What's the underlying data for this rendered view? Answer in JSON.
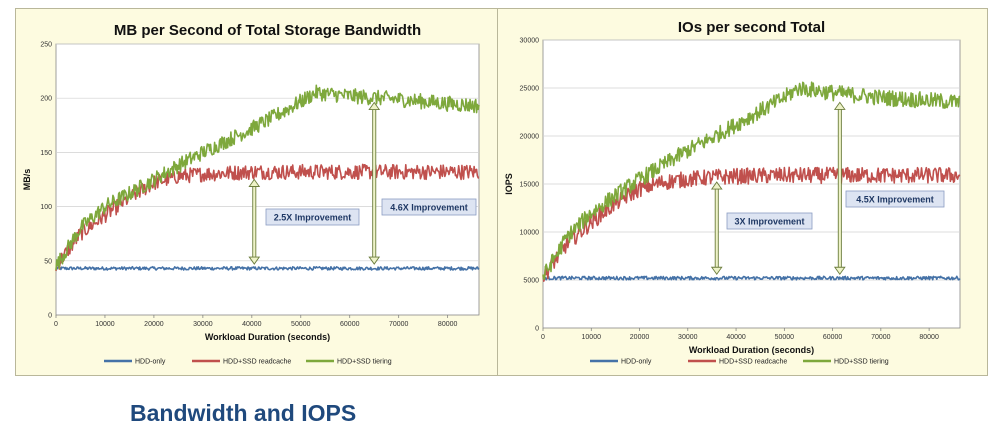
{
  "caption": "Bandwidth and IOPS",
  "chart_data": [
    {
      "type": "line",
      "title": "MB per Second of Total Storage Bandwidth",
      "xlabel": "Workload Duration (seconds)",
      "ylabel": "MB/s",
      "xlim": [
        0,
        86400
      ],
      "ylim": [
        0,
        250
      ],
      "x_ticks": [
        "0",
        "10000",
        "20000",
        "30000",
        "40000",
        "50000",
        "60000",
        "70000",
        "80000"
      ],
      "y_ticks": [
        "0",
        "50",
        "100",
        "150",
        "200",
        "250"
      ],
      "grid": "horizontal",
      "legend_position": "bottom",
      "series": [
        {
          "name": "HDD-only",
          "color": "#4572a7",
          "x": [
            0,
            10000,
            20000,
            30000,
            40000,
            50000,
            55000,
            60000,
            70000,
            80000,
            86400
          ],
          "y": [
            43,
            43,
            43,
            43,
            43,
            43,
            43,
            43,
            43,
            43,
            43
          ]
        },
        {
          "name": "HDD+SSD readcache",
          "color": "#c0504d",
          "x": [
            0,
            5000,
            10000,
            15000,
            20000,
            25000,
            30000,
            35000,
            40000,
            50000,
            60000,
            70000,
            80000,
            86400
          ],
          "y": [
            45,
            75,
            92,
            108,
            122,
            128,
            130,
            131,
            132,
            132,
            132,
            132,
            132,
            132
          ]
        },
        {
          "name": "HDD+SSD tiering",
          "color": "#7ea83c",
          "x": [
            0,
            5000,
            10000,
            15000,
            20000,
            25000,
            30000,
            35000,
            40000,
            45000,
            50000,
            53000,
            60000,
            70000,
            80000,
            86400
          ],
          "y": [
            45,
            80,
            100,
            112,
            125,
            138,
            150,
            161,
            172,
            184,
            197,
            205,
            202,
            199,
            195,
            193
          ]
        }
      ],
      "annotations": [
        {
          "text": "2.5X Improvement",
          "x": 40500,
          "y_from": 125,
          "y_to": 47
        },
        {
          "text": "4.6X Improvement",
          "x": 65000,
          "y_from": 196,
          "y_to": 47
        }
      ]
    },
    {
      "type": "line",
      "title": "IOs per second Total",
      "xlabel": "Workload Duration (seconds)",
      "ylabel": "IOPS",
      "xlim": [
        0,
        86400
      ],
      "ylim": [
        0,
        30000
      ],
      "x_ticks": [
        "0",
        "10000",
        "20000",
        "30000",
        "40000",
        "50000",
        "60000",
        "70000",
        "80000"
      ],
      "y_ticks": [
        "0",
        "5000",
        "10000",
        "15000",
        "20000",
        "25000",
        "30000"
      ],
      "grid": "horizontal",
      "legend_position": "bottom",
      "series": [
        {
          "name": "HDD-only",
          "color": "#4572a7",
          "x": [
            0,
            10000,
            20000,
            30000,
            40000,
            50000,
            55000,
            60000,
            70000,
            80000,
            86400
          ],
          "y": [
            5200,
            5200,
            5200,
            5200,
            5200,
            5200,
            5200,
            5200,
            5200,
            5200,
            5200
          ]
        },
        {
          "name": "HDD+SSD readcache",
          "color": "#c0504d",
          "x": [
            0,
            5000,
            10000,
            15000,
            20000,
            25000,
            30000,
            35000,
            40000,
            50000,
            60000,
            70000,
            80000,
            86400
          ],
          "y": [
            5300,
            8800,
            11000,
            13000,
            14500,
            15200,
            15500,
            15700,
            15800,
            15900,
            15900,
            15900,
            15900,
            15900
          ]
        },
        {
          "name": "HDD+SSD tiering",
          "color": "#7ea83c",
          "x": [
            0,
            5000,
            10000,
            15000,
            20000,
            25000,
            30000,
            35000,
            40000,
            45000,
            50000,
            53000,
            60000,
            70000,
            80000,
            86400
          ],
          "y": [
            5300,
            9500,
            12000,
            13800,
            15500,
            17000,
            18500,
            19800,
            21200,
            22600,
            24000,
            25000,
            24500,
            24000,
            23700,
            23500
          ]
        }
      ],
      "annotations": [
        {
          "text": "3X Improvement",
          "x": 36000,
          "y_from": 15200,
          "y_to": 5600
        },
        {
          "text": "4.5X Improvement",
          "x": 61500,
          "y_from": 23500,
          "y_to": 5600
        }
      ]
    }
  ]
}
